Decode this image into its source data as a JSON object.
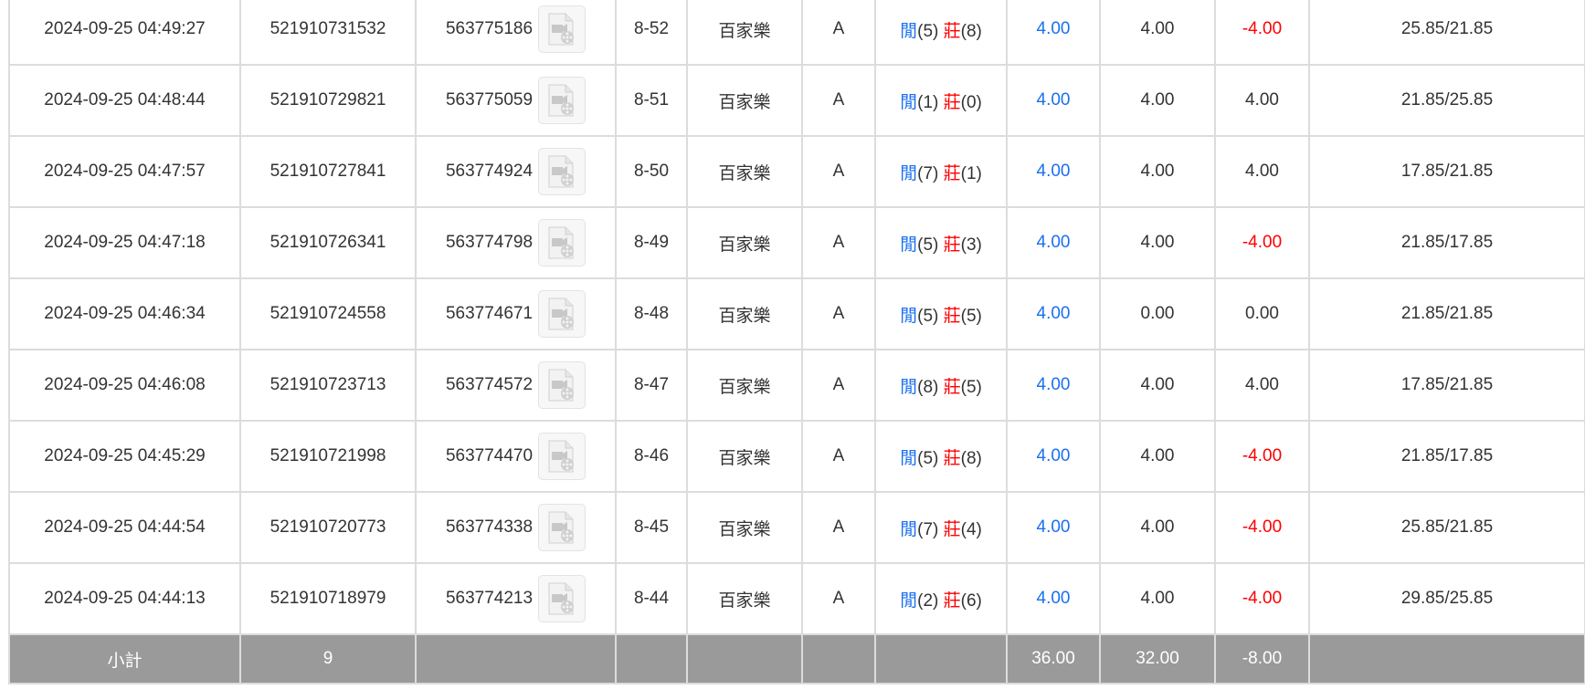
{
  "rows": [
    {
      "time": "2024-09-25 04:49:27",
      "bet_id": "521910731532",
      "round_id": "563775186",
      "shoe": "8-52",
      "game": "百家樂",
      "table": "A",
      "player_label": "閒",
      "player": "(5)",
      "banker_label": "莊",
      "banker": "(8)",
      "bet": "4.00",
      "valid": "4.00",
      "win": "-4.00",
      "win_neg": true,
      "balance": "25.85/21.85"
    },
    {
      "time": "2024-09-25 04:48:44",
      "bet_id": "521910729821",
      "round_id": "563775059",
      "shoe": "8-51",
      "game": "百家樂",
      "table": "A",
      "player_label": "閒",
      "player": "(1)",
      "banker_label": "莊",
      "banker": "(0)",
      "bet": "4.00",
      "valid": "4.00",
      "win": "4.00",
      "win_neg": false,
      "balance": "21.85/25.85"
    },
    {
      "time": "2024-09-25 04:47:57",
      "bet_id": "521910727841",
      "round_id": "563774924",
      "shoe": "8-50",
      "game": "百家樂",
      "table": "A",
      "player_label": "閒",
      "player": "(7)",
      "banker_label": "莊",
      "banker": "(1)",
      "bet": "4.00",
      "valid": "4.00",
      "win": "4.00",
      "win_neg": false,
      "balance": "17.85/21.85"
    },
    {
      "time": "2024-09-25 04:47:18",
      "bet_id": "521910726341",
      "round_id": "563774798",
      "shoe": "8-49",
      "game": "百家樂",
      "table": "A",
      "player_label": "閒",
      "player": "(5)",
      "banker_label": "莊",
      "banker": "(3)",
      "bet": "4.00",
      "valid": "4.00",
      "win": "-4.00",
      "win_neg": true,
      "balance": "21.85/17.85"
    },
    {
      "time": "2024-09-25 04:46:34",
      "bet_id": "521910724558",
      "round_id": "563774671",
      "shoe": "8-48",
      "game": "百家樂",
      "table": "A",
      "player_label": "閒",
      "player": "(5)",
      "banker_label": "莊",
      "banker": "(5)",
      "bet": "4.00",
      "valid": "0.00",
      "win": "0.00",
      "win_neg": false,
      "balance": "21.85/21.85"
    },
    {
      "time": "2024-09-25 04:46:08",
      "bet_id": "521910723713",
      "round_id": "563774572",
      "shoe": "8-47",
      "game": "百家樂",
      "table": "A",
      "player_label": "閒",
      "player": "(8)",
      "banker_label": "莊",
      "banker": "(5)",
      "bet": "4.00",
      "valid": "4.00",
      "win": "4.00",
      "win_neg": false,
      "balance": "17.85/21.85"
    },
    {
      "time": "2024-09-25 04:45:29",
      "bet_id": "521910721998",
      "round_id": "563774470",
      "shoe": "8-46",
      "game": "百家樂",
      "table": "A",
      "player_label": "閒",
      "player": "(5)",
      "banker_label": "莊",
      "banker": "(8)",
      "bet": "4.00",
      "valid": "4.00",
      "win": "-4.00",
      "win_neg": true,
      "balance": "21.85/17.85"
    },
    {
      "time": "2024-09-25 04:44:54",
      "bet_id": "521910720773",
      "round_id": "563774338",
      "shoe": "8-45",
      "game": "百家樂",
      "table": "A",
      "player_label": "閒",
      "player": "(7)",
      "banker_label": "莊",
      "banker": "(4)",
      "bet": "4.00",
      "valid": "4.00",
      "win": "-4.00",
      "win_neg": true,
      "balance": "25.85/21.85"
    },
    {
      "time": "2024-09-25 04:44:13",
      "bet_id": "521910718979",
      "round_id": "563774213",
      "shoe": "8-44",
      "game": "百家樂",
      "table": "A",
      "player_label": "閒",
      "player": "(2)",
      "banker_label": "莊",
      "banker": "(6)",
      "bet": "4.00",
      "valid": "4.00",
      "win": "-4.00",
      "win_neg": true,
      "balance": "29.85/25.85"
    }
  ],
  "subtotal": {
    "label": "小計",
    "count": "9",
    "bet": "36.00",
    "valid": "32.00",
    "win": "-8.00"
  },
  "icons": {
    "replay": "video-replay-icon"
  },
  "colors": {
    "player": "#1a6ff0",
    "banker": "#ff0000",
    "negative": "#ff0000",
    "subtotal_bg": "#9a9a9a"
  }
}
